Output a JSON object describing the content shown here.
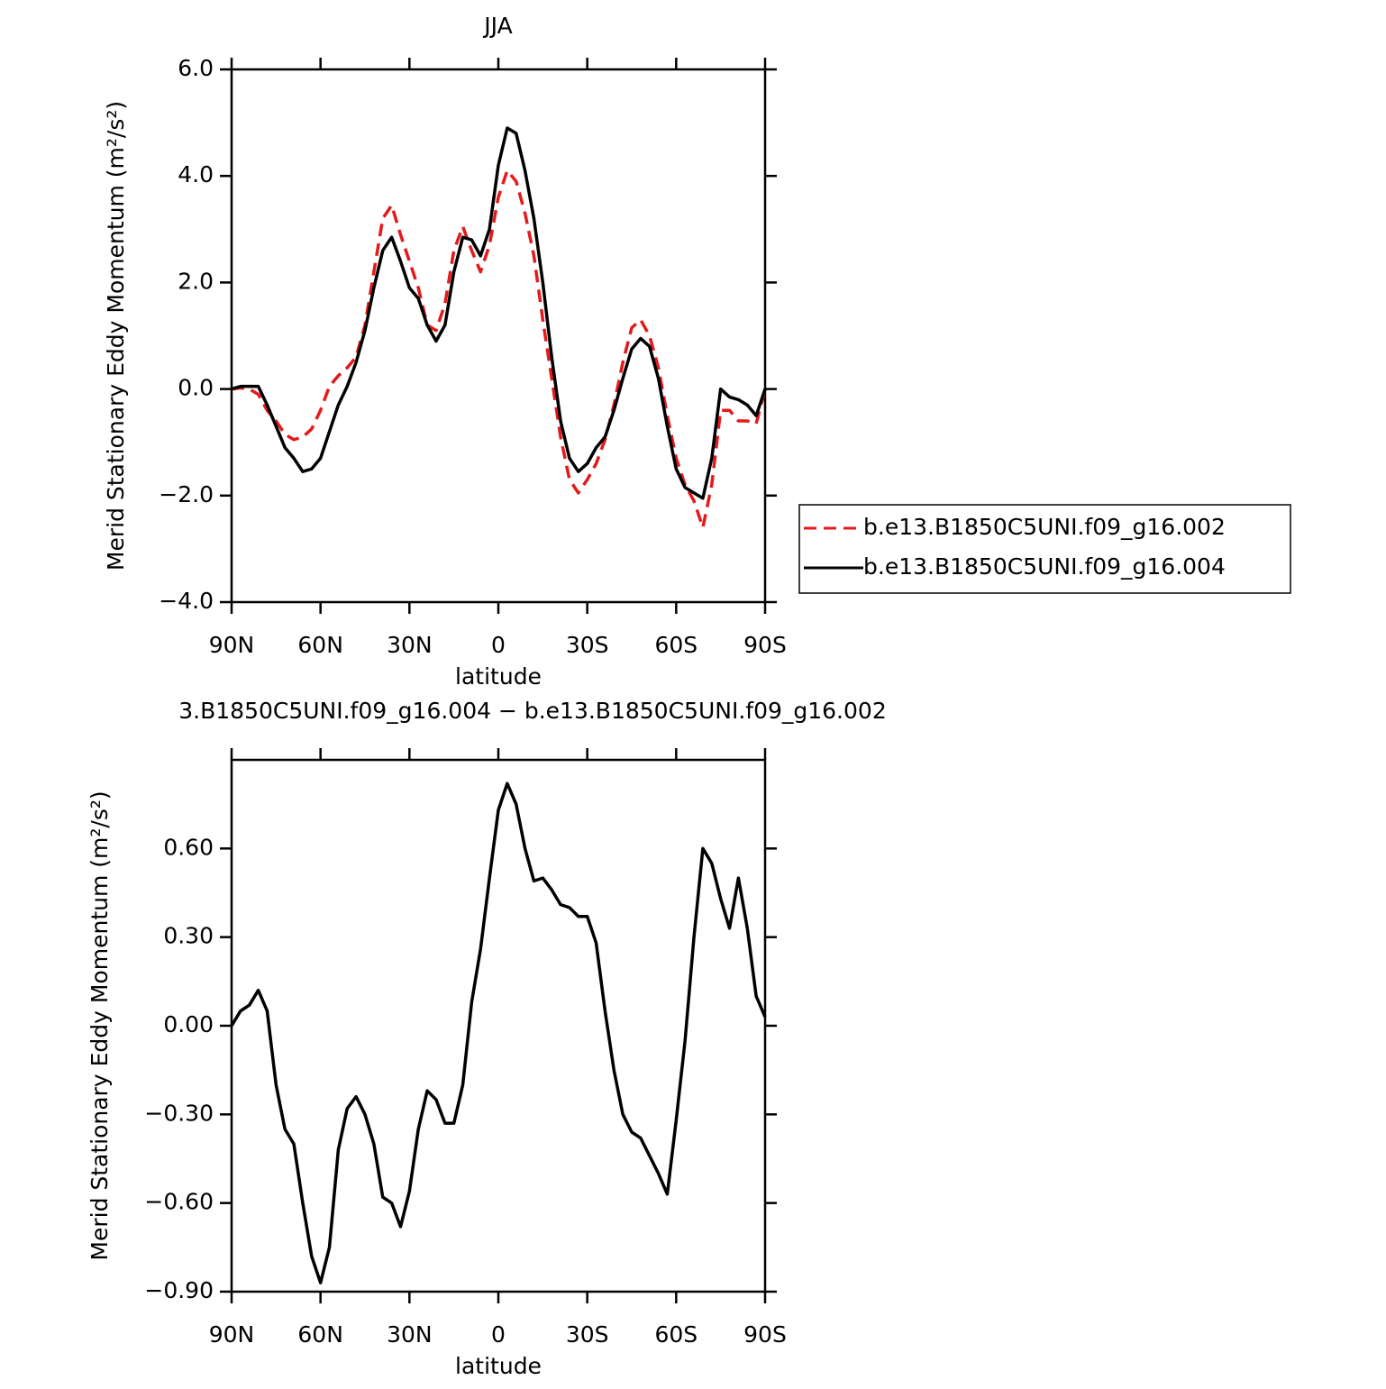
{
  "chart_data": [
    {
      "type": "line",
      "title": "JJA",
      "xlabel": "latitude",
      "ylabel": "Merid Stationary Eddy Momentum (m²/s²)",
      "x": [
        90,
        87,
        84,
        81,
        78,
        75,
        72,
        69,
        66,
        63,
        60,
        57,
        54,
        51,
        48,
        45,
        42,
        39,
        36,
        33,
        30,
        27,
        24,
        21,
        18,
        15,
        12,
        9,
        6,
        3,
        0,
        -3,
        -6,
        -9,
        -12,
        -15,
        -18,
        -21,
        -24,
        -27,
        -30,
        -33,
        -36,
        -39,
        -42,
        -45,
        -48,
        -51,
        -54,
        -57,
        -60,
        -63,
        -66,
        -69,
        -72,
        -75,
        -78,
        -81,
        -84,
        -87,
        -90
      ],
      "series": [
        {
          "name": "b.e13.B1850C5UNI.f09_g16.002",
          "color": "#e41a1c",
          "linestyle": "dashed",
          "values": [
            0,
            0.02,
            0,
            -0.1,
            -0.4,
            -0.6,
            -0.85,
            -0.95,
            -0.9,
            -0.75,
            -0.4,
            0.05,
            0.25,
            0.4,
            0.6,
            1.2,
            2.2,
            3.2,
            3.45,
            2.9,
            2.4,
            1.9,
            1.2,
            1.1,
            1.6,
            2.6,
            3.05,
            2.6,
            2.2,
            2.7,
            3.6,
            4.1,
            3.9,
            3.3,
            2.5,
            1.3,
            0.2,
            -0.9,
            -1.7,
            -1.95,
            -1.7,
            -1.4,
            -0.95,
            -0.3,
            0.5,
            1.15,
            1.3,
            1.0,
            0.4,
            -0.5,
            -1.3,
            -1.8,
            -2.1,
            -2.6,
            -1.8,
            -0.4,
            -0.4,
            -0.6,
            -0.6,
            -0.65,
            0
          ]
        },
        {
          "name": "b.e13.B1850C5UNI.f09_g16.004",
          "color": "#000000",
          "linestyle": "solid",
          "values": [
            0,
            0.05,
            0.05,
            0.05,
            -0.3,
            -0.7,
            -1.1,
            -1.3,
            -1.55,
            -1.5,
            -1.3,
            -0.8,
            -0.3,
            0.05,
            0.5,
            1.1,
            1.9,
            2.6,
            2.85,
            2.4,
            1.9,
            1.7,
            1.2,
            0.9,
            1.2,
            2.2,
            2.85,
            2.8,
            2.5,
            3.0,
            4.2,
            4.9,
            4.8,
            4.1,
            3.2,
            2.0,
            0.6,
            -0.6,
            -1.3,
            -1.55,
            -1.4,
            -1.1,
            -0.9,
            -0.4,
            0.2,
            0.75,
            0.95,
            0.8,
            0.2,
            -0.7,
            -1.5,
            -1.85,
            -1.95,
            -2.05,
            -1.3,
            0.0,
            -0.15,
            -0.2,
            -0.3,
            -0.5,
            0
          ]
        }
      ],
      "xlim": [
        90,
        -90
      ],
      "xticks": [
        {
          "value": 90,
          "label": "90N"
        },
        {
          "value": 60,
          "label": "60N"
        },
        {
          "value": 30,
          "label": "30N"
        },
        0,
        {
          "value": -30,
          "label": "30S"
        },
        {
          "value": -60,
          "label": "60S"
        },
        {
          "value": -90,
          "label": "90S"
        }
      ],
      "ylim": [
        -4,
        6
      ],
      "yticks": [
        {
          "value": -4,
          "label": "−4.0"
        },
        {
          "value": -2,
          "label": "−2.0"
        },
        {
          "value": 0,
          "label": "0.0"
        },
        {
          "value": 2,
          "label": "2.0"
        },
        {
          "value": 4,
          "label": "4.0"
        },
        {
          "value": 6,
          "label": "6.0"
        }
      ],
      "legend": "right"
    },
    {
      "type": "line",
      "title": "3.B1850C5UNI.f09_g16.004 − b.e13.B1850C5UNI.f09_g16.002",
      "xlabel": "latitude",
      "ylabel": "Merid Stationary Eddy Momentum (m²/s²)",
      "x": [
        90,
        87,
        84,
        81,
        78,
        75,
        72,
        69,
        66,
        63,
        60,
        57,
        54,
        51,
        48,
        45,
        42,
        39,
        36,
        33,
        30,
        27,
        24,
        21,
        18,
        15,
        12,
        9,
        6,
        3,
        0,
        -3,
        -6,
        -9,
        -12,
        -15,
        -18,
        -21,
        -24,
        -27,
        -30,
        -33,
        -36,
        -39,
        -42,
        -45,
        -48,
        -51,
        -54,
        -57,
        -60,
        -63,
        -66,
        -69,
        -72,
        -75,
        -78,
        -81,
        -84,
        -87,
        -90
      ],
      "series": [
        {
          "color": "#000000",
          "linestyle": "solid",
          "values": [
            0,
            0.05,
            0.07,
            0.12,
            0.05,
            -0.2,
            -0.35,
            -0.4,
            -0.6,
            -0.78,
            -0.87,
            -0.75,
            -0.42,
            -0.28,
            -0.24,
            -0.3,
            -0.4,
            -0.58,
            -0.6,
            -0.68,
            -0.56,
            -0.35,
            -0.22,
            -0.25,
            -0.33,
            -0.33,
            -0.2,
            0.08,
            0.26,
            0.5,
            0.73,
            0.82,
            0.75,
            0.6,
            0.49,
            0.5,
            0.46,
            0.41,
            0.4,
            0.37,
            0.37,
            0.28,
            0.05,
            -0.15,
            -0.3,
            -0.36,
            -0.38,
            -0.44,
            -0.5,
            -0.57,
            -0.32,
            -0.05,
            0.3,
            0.6,
            0.55,
            0.43,
            0.33,
            0.5,
            0.33,
            0.1,
            0.03
          ]
        }
      ],
      "xlim": [
        90,
        -90
      ],
      "xticks": [
        {
          "value": 90,
          "label": "90N"
        },
        {
          "value": 60,
          "label": "60N"
        },
        {
          "value": 30,
          "label": "30N"
        },
        0,
        {
          "value": -30,
          "label": "30S"
        },
        {
          "value": -60,
          "label": "60S"
        },
        {
          "value": -90,
          "label": "90S"
        }
      ],
      "ylim": [
        -0.9,
        0.9
      ],
      "yticks": [
        {
          "value": -0.9,
          "label": "−0.90"
        },
        {
          "value": -0.6,
          "label": "−0.60"
        },
        {
          "value": -0.3,
          "label": "−0.30"
        },
        {
          "value": 0,
          "label": "0.00"
        },
        {
          "value": 0.3,
          "label": "0.30"
        },
        {
          "value": 0.6,
          "label": "0.60"
        }
      ]
    }
  ]
}
